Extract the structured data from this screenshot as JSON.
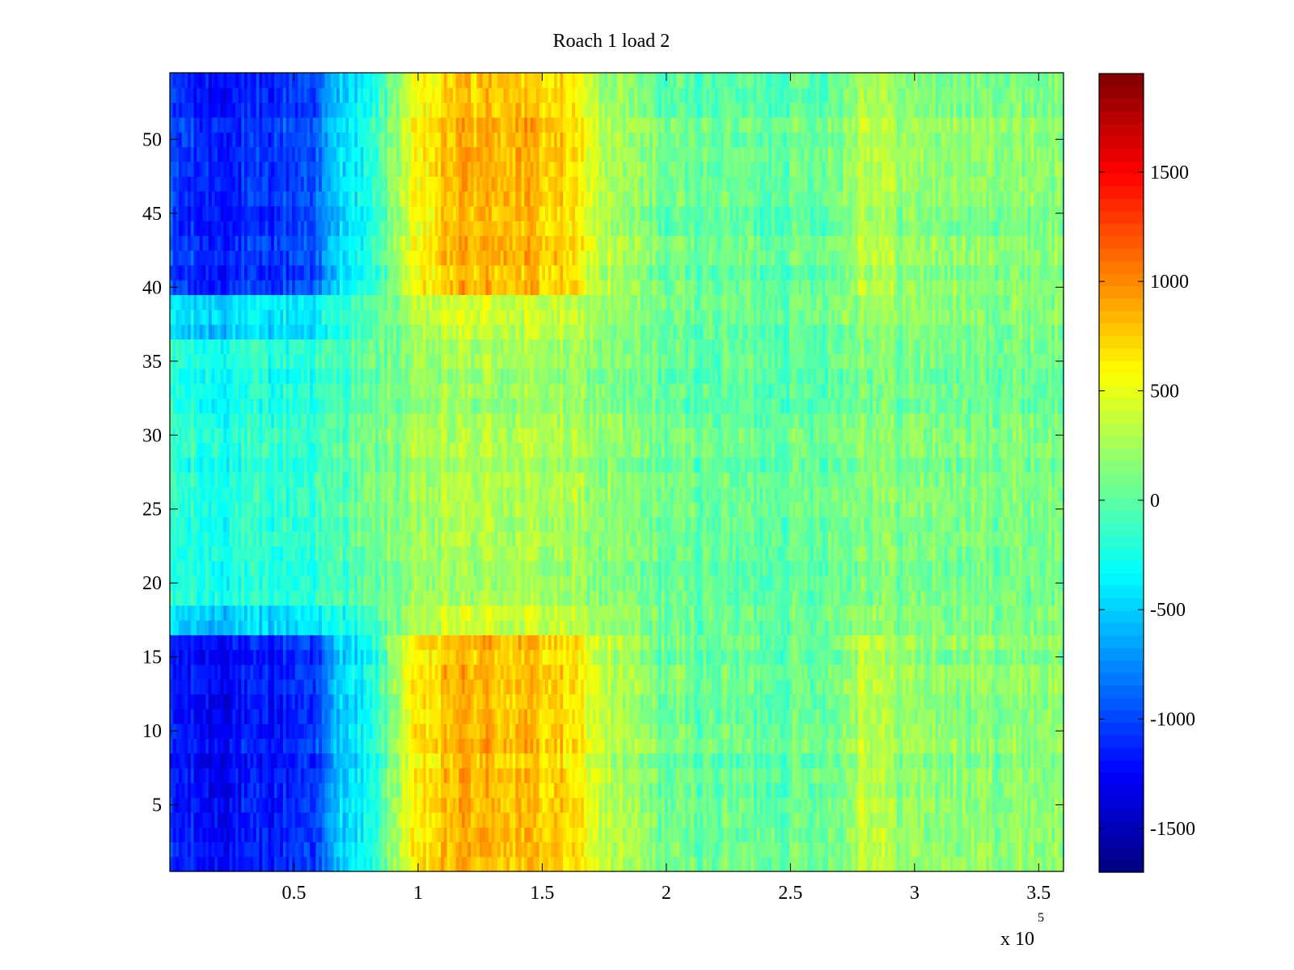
{
  "chart_data": {
    "type": "heatmap",
    "title": "Roach 1 load 2",
    "xlabel": "",
    "ylabel": "",
    "x_range": [
      0,
      360000
    ],
    "y_range": [
      0.5,
      54.5
    ],
    "x_ticks": [
      50000,
      100000,
      150000,
      200000,
      250000,
      300000,
      350000
    ],
    "x_tick_labels": [
      "0.5",
      "1",
      "1.5",
      "2",
      "2.5",
      "3",
      "3.5"
    ],
    "x_exponent": "x 10",
    "x_exponent_power": "5",
    "y_ticks": [
      5,
      10,
      15,
      20,
      25,
      30,
      35,
      40,
      45,
      50
    ],
    "y_tick_labels": [
      "5",
      "10",
      "15",
      "20",
      "25",
      "30",
      "35",
      "40",
      "45",
      "50"
    ],
    "rows": 54,
    "colorbar": {
      "colormap": "jet",
      "range": [
        -1700,
        1950
      ],
      "ticks": [
        -1500,
        -1000,
        -500,
        0,
        500,
        1000,
        1500
      ],
      "tick_labels": [
        "-1500",
        "-1000",
        "-500",
        "0",
        "500",
        "1000",
        "1500"
      ]
    },
    "value_profile": {
      "x": [
        0,
        15000,
        40000,
        60000,
        70000,
        80000,
        95000,
        115000,
        140000,
        160000,
        175000,
        200000,
        250000,
        270000,
        280000,
        295000,
        320000,
        360000
      ],
      "rows_1_16": [
        -1150,
        -1250,
        -1200,
        -1000,
        -450,
        -350,
        480,
        850,
        800,
        700,
        350,
        50,
        20,
        100,
        400,
        200,
        150,
        180
      ],
      "rows_17_18": [
        -500,
        -550,
        -500,
        -400,
        -250,
        -150,
        200,
        400,
        380,
        330,
        200,
        40,
        20,
        80,
        250,
        140,
        100,
        120
      ],
      "rows_19_36": [
        -200,
        -250,
        -220,
        -150,
        -50,
        20,
        150,
        260,
        250,
        220,
        150,
        20,
        10,
        60,
        160,
        100,
        80,
        90
      ],
      "rows_37_39": [
        -450,
        -500,
        -450,
        -380,
        -200,
        -100,
        200,
        400,
        380,
        320,
        180,
        30,
        20,
        90,
        240,
        140,
        100,
        120
      ],
      "rows_40_54": [
        -1000,
        -1150,
        -1100,
        -900,
        -400,
        -300,
        400,
        850,
        850,
        700,
        300,
        40,
        20,
        100,
        380,
        200,
        150,
        170
      ]
    },
    "grid": false,
    "legend": "colorbar-right"
  }
}
